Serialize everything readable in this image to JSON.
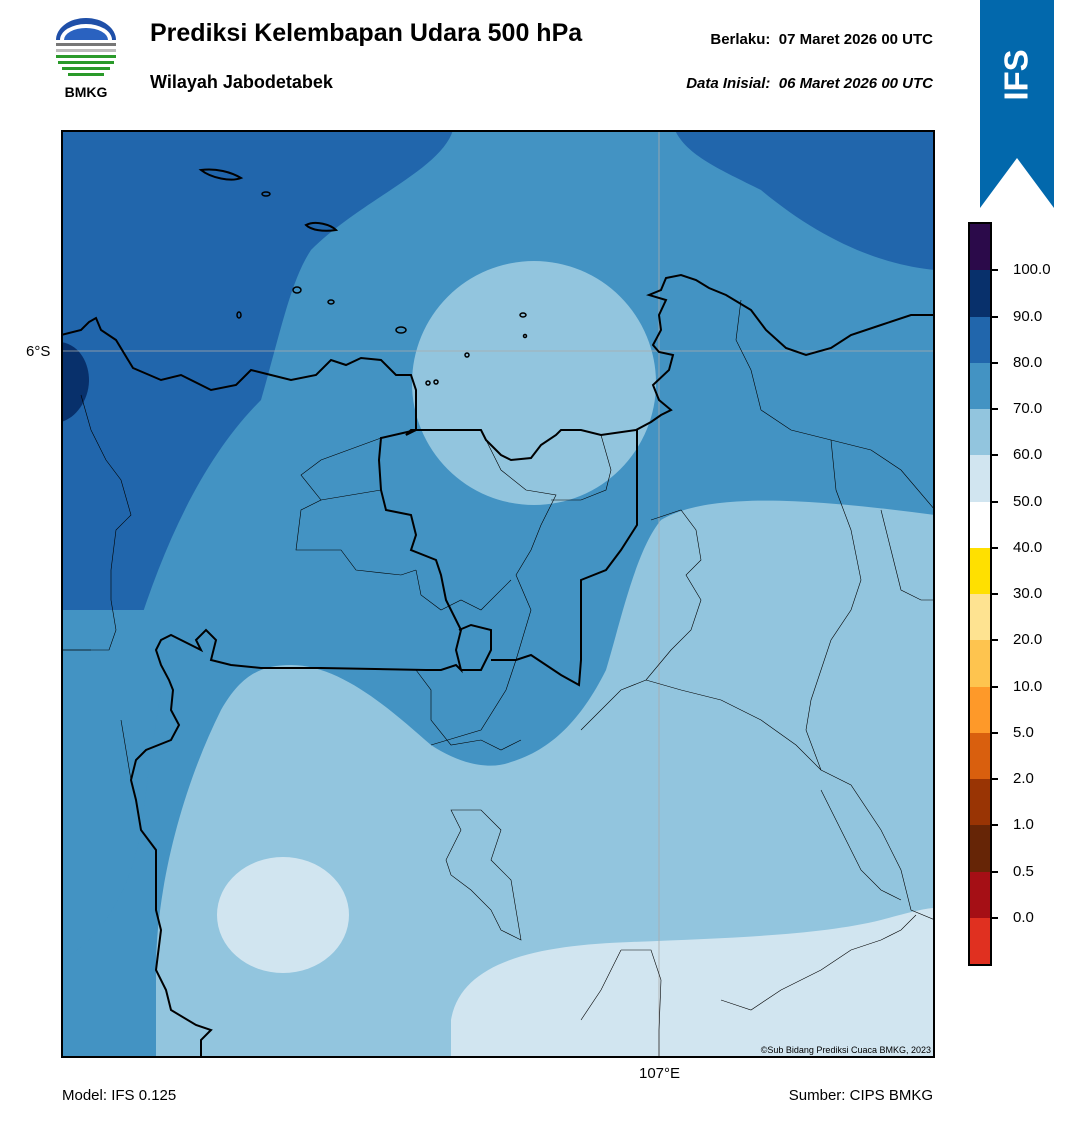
{
  "header": {
    "logo_text": "BMKG",
    "title": "Prediksi Kelembapan Udara 500 hPa",
    "subtitle": "Wilayah Jabodetabek",
    "valid_label": "Berlaku:",
    "valid_time": "07 Maret 2026 00 UTC",
    "init_label": "Data Inisial:",
    "init_time": "06 Maret 2026 00 UTC",
    "banner": "IFS"
  },
  "map": {
    "lat_label": "6°S",
    "lon_label": "107°E",
    "copyright": "©Sub Bidang Prediksi Cuaca BMKG, 2023"
  },
  "footer": {
    "model": "Model: IFS 0.125",
    "source": "Sumber: CIPS BMKG"
  },
  "colorbar": {
    "labels": [
      "100.0",
      "90.0",
      "80.0",
      "70.0",
      "60.0",
      "50.0",
      "40.0",
      "30.0",
      "20.0",
      "10.0",
      "5.0",
      "2.0",
      "1.0",
      "0.5",
      "0.0"
    ],
    "colors": [
      "#2b0a4a",
      "#08306b",
      "#2166ac",
      "#4393c3",
      "#92c5de",
      "#d1e5f0",
      "#ffffff",
      "#ffe000",
      "#fee391",
      "#fec44f",
      "#fe9929",
      "#d95f0e",
      "#993404",
      "#662506",
      "#a50f15",
      "#e03020"
    ]
  },
  "colors": {
    "banner": "#0268ac",
    "rh_90_100": "#08306b",
    "rh_80_90": "#2166ac",
    "rh_70_80": "#4393c3",
    "rh_60_70": "#92c5de",
    "rh_50_60": "#d1e5f0"
  }
}
